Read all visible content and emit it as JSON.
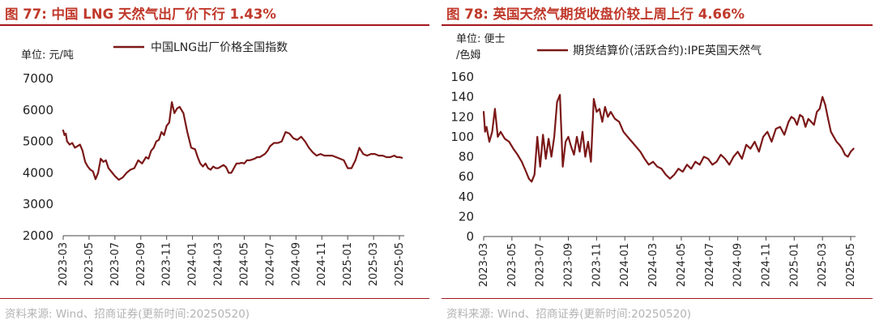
{
  "left_panel": {
    "figure_title": "图 77:  中国 LNG 天然气出厂价下行 1.43%",
    "source": "资料来源:  Wind、招商证券(更新时间:20250520)",
    "chart_data": {
      "type": "line",
      "title": "",
      "unit_label": "单位:  元/吨",
      "legend": "中国LNG出厂价格全国指数",
      "series_color": "#7b1818",
      "ylim": [
        2000,
        7000
      ],
      "yticks": [
        2000,
        3000,
        4000,
        5000,
        6000,
        7000
      ],
      "xticks": [
        "2023-03",
        "2023-05",
        "2023-07",
        "2023-09",
        "2023-11",
        "2024-01",
        "2024-03",
        "2024-05",
        "2024-07",
        "2024-09",
        "2024-11",
        "2025-01",
        "2025-03",
        "2025-05"
      ],
      "x_unit": "month_index_from_2023-03",
      "series": [
        {
          "name": "中国LNG出厂价格全国指数",
          "x": [
            0,
            0.1,
            0.2,
            0.3,
            0.5,
            0.7,
            0.9,
            1.1,
            1.3,
            1.5,
            1.7,
            1.9,
            2.1,
            2.3,
            2.5,
            2.7,
            2.9,
            3.1,
            3.3,
            3.5,
            3.7,
            4.0,
            4.3,
            4.6,
            4.9,
            5.2,
            5.5,
            5.8,
            6.1,
            6.4,
            6.6,
            6.8,
            7.0,
            7.2,
            7.4,
            7.6,
            7.8,
            8.0,
            8.2,
            8.4,
            8.6,
            8.8,
            9.0,
            9.3,
            9.6,
            9.9,
            10.2,
            10.4,
            10.6,
            10.8,
            11.0,
            11.2,
            11.4,
            11.6,
            11.8,
            12.0,
            12.2,
            12.4,
            12.6,
            12.8,
            13.0,
            13.2,
            13.4,
            13.6,
            13.8,
            14.0,
            14.2,
            14.4,
            14.6,
            14.8,
            15.0,
            15.2,
            15.4,
            15.6,
            15.8,
            16.0,
            16.3,
            16.6,
            16.9,
            17.2,
            17.5,
            17.8,
            18.1,
            18.4,
            18.7,
            19.0,
            19.3,
            19.6,
            19.9,
            20.2,
            20.5,
            20.8,
            21.1,
            21.4,
            21.7,
            22.0,
            22.3,
            22.6,
            22.9,
            23.2,
            23.5,
            23.8,
            24.1,
            24.4,
            24.7,
            25.0,
            25.3,
            25.6,
            25.8,
            26.0,
            26.2
          ],
          "values": [
            5350,
            5200,
            5250,
            5000,
            4900,
            4950,
            4800,
            4850,
            4900,
            4700,
            4350,
            4200,
            4100,
            4050,
            3800,
            4000,
            4450,
            4350,
            4400,
            4150,
            4050,
            3900,
            3780,
            3850,
            4000,
            4100,
            4150,
            4400,
            4300,
            4500,
            4450,
            4700,
            4800,
            5000,
            5050,
            5300,
            5200,
            5500,
            5600,
            6250,
            5900,
            6050,
            6100,
            5900,
            5300,
            4800,
            4750,
            4500,
            4300,
            4200,
            4300,
            4150,
            4100,
            4200,
            4150,
            4150,
            4200,
            4250,
            4180,
            4000,
            4000,
            4150,
            4300,
            4300,
            4320,
            4300,
            4400,
            4400,
            4420,
            4450,
            4500,
            4500,
            4550,
            4600,
            4700,
            4850,
            4950,
            4950,
            5000,
            5300,
            5250,
            5100,
            5050,
            5150,
            5000,
            4800,
            4650,
            4550,
            4600,
            4550,
            4550,
            4550,
            4500,
            4450,
            4400,
            4150,
            4150,
            4400,
            4800,
            4600,
            4550,
            4600,
            4600,
            4550,
            4550,
            4500,
            4500,
            4550,
            4500,
            4500,
            4480
          ]
        }
      ]
    }
  },
  "right_panel": {
    "figure_title": "图 78:  英国天然气期货收盘价较上周上行 4.66%",
    "source": "资料来源:  Wind、招商证券(更新时间:20250520)",
    "chart_data": {
      "type": "line",
      "title": "",
      "unit_label_line1": "单位:  便士",
      "unit_label_line2": "/色姆",
      "legend": "期货结算价(活跃合约):IPE英国天然气",
      "series_color": "#7b1818",
      "ylim": [
        0,
        160
      ],
      "yticks": [
        0,
        20,
        40,
        60,
        80,
        100,
        120,
        140,
        160
      ],
      "xticks": [
        "2023-03",
        "2023-05",
        "2023-07",
        "2023-09",
        "2023-11",
        "2024-01",
        "2024-03",
        "2024-05",
        "2024-07",
        "2024-09",
        "2024-11",
        "2025-01",
        "2025-03",
        "2025-05"
      ],
      "x_unit": "month_index_from_2023-03",
      "series": [
        {
          "name": "期货结算价(活跃合约):IPE英国天然气",
          "x": [
            0,
            0.1,
            0.2,
            0.4,
            0.6,
            0.8,
            1.0,
            1.2,
            1.5,
            1.8,
            2.1,
            2.4,
            2.7,
            3.0,
            3.2,
            3.4,
            3.6,
            3.8,
            4.0,
            4.2,
            4.4,
            4.6,
            4.8,
            5.0,
            5.2,
            5.4,
            5.6,
            5.8,
            6.0,
            6.2,
            6.4,
            6.6,
            6.8,
            7.0,
            7.2,
            7.4,
            7.6,
            7.8,
            8.0,
            8.2,
            8.4,
            8.6,
            8.8,
            9.0,
            9.3,
            9.6,
            9.9,
            10.2,
            10.5,
            10.8,
            11.1,
            11.4,
            11.7,
            12.0,
            12.3,
            12.6,
            12.9,
            13.2,
            13.5,
            13.8,
            14.1,
            14.4,
            14.7,
            15.0,
            15.3,
            15.6,
            15.9,
            16.2,
            16.5,
            16.8,
            17.1,
            17.4,
            17.7,
            18.0,
            18.3,
            18.6,
            18.9,
            19.2,
            19.5,
            19.8,
            20.1,
            20.4,
            20.7,
            21.0,
            21.3,
            21.6,
            21.8,
            22.0,
            22.2,
            22.4,
            22.6,
            22.8,
            23.0,
            23.2,
            23.4,
            23.6,
            23.8,
            24.0,
            24.2,
            24.4,
            24.6,
            24.8,
            25.0,
            25.2,
            25.4,
            25.6,
            25.8,
            26.0,
            26.2
          ],
          "values": [
            125,
            105,
            110,
            95,
            105,
            128,
            100,
            105,
            98,
            95,
            88,
            82,
            75,
            65,
            58,
            55,
            62,
            100,
            70,
            102,
            78,
            98,
            80,
            100,
            135,
            142,
            70,
            95,
            100,
            90,
            82,
            100,
            85,
            105,
            80,
            95,
            75,
            138,
            125,
            128,
            115,
            130,
            120,
            125,
            118,
            115,
            105,
            100,
            95,
            90,
            85,
            78,
            72,
            75,
            70,
            68,
            62,
            58,
            62,
            68,
            65,
            72,
            68,
            75,
            72,
            80,
            78,
            72,
            75,
            82,
            78,
            72,
            80,
            85,
            78,
            92,
            88,
            95,
            85,
            100,
            105,
            95,
            108,
            110,
            102,
            115,
            120,
            118,
            112,
            122,
            120,
            110,
            118,
            115,
            112,
            125,
            128,
            140,
            132,
            118,
            105,
            100,
            95,
            92,
            88,
            82,
            80,
            85,
            88
          ]
        }
      ]
    }
  }
}
